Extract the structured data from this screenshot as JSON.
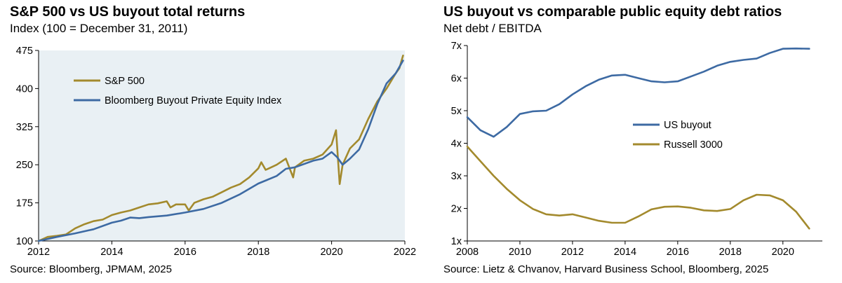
{
  "charts": [
    {
      "title": "S&P 500 vs US buyout total returns",
      "subtitle": "Index (100 = December 31, 2011)",
      "source": "Source: Bloomberg, JPMAM, 2025"
    },
    {
      "title": "US buyout vs comparable public equity debt ratios",
      "subtitle": "Net debt / EBITDA",
      "source": "Source: Lietz & Chvanov, Harvard Business School, Bloomberg, 2025"
    }
  ],
  "chart_data": [
    {
      "type": "line",
      "title": "S&P 500 vs US buyout total returns",
      "ylabel": "Index (100 = December 31, 2011)",
      "xlim": [
        2012,
        2022
      ],
      "ylim": [
        100,
        475
      ],
      "xticks": [
        2012,
        2014,
        2016,
        2018,
        2020,
        2022
      ],
      "yticks": [
        100,
        175,
        250,
        325,
        400,
        475
      ],
      "legend_position": "top-left",
      "background": "#e9f0f4",
      "series": [
        {
          "name": "S&P 500",
          "color": "#a38a2d",
          "x": [
            2012.0,
            2012.25,
            2012.5,
            2012.75,
            2013.0,
            2013.25,
            2013.5,
            2013.75,
            2014.0,
            2014.25,
            2014.5,
            2014.75,
            2015.0,
            2015.25,
            2015.5,
            2015.6,
            2015.75,
            2016.0,
            2016.1,
            2016.25,
            2016.5,
            2016.75,
            2017.0,
            2017.25,
            2017.5,
            2017.75,
            2018.0,
            2018.08,
            2018.2,
            2018.5,
            2018.75,
            2018.95,
            2019.0,
            2019.25,
            2019.5,
            2019.75,
            2020.0,
            2020.12,
            2020.22,
            2020.3,
            2020.5,
            2020.75,
            2021.0,
            2021.25,
            2021.5,
            2021.75,
            2021.85,
            2021.95
          ],
          "values": [
            100,
            108,
            110,
            113,
            125,
            133,
            139,
            142,
            151,
            156,
            160,
            166,
            172,
            174,
            178,
            166,
            172,
            172,
            160,
            175,
            182,
            187,
            196,
            205,
            212,
            225,
            243,
            255,
            240,
            250,
            262,
            225,
            245,
            258,
            262,
            270,
            290,
            318,
            212,
            250,
            282,
            300,
            340,
            375,
            400,
            430,
            440,
            465
          ]
        },
        {
          "name": "Bloomberg Buyout Private Equity Index",
          "color": "#3d6aa3",
          "x": [
            2012.0,
            2012.5,
            2013.0,
            2013.5,
            2014.0,
            2014.25,
            2014.5,
            2014.75,
            2015.0,
            2015.5,
            2016.0,
            2016.5,
            2017.0,
            2017.5,
            2018.0,
            2018.5,
            2018.75,
            2019.0,
            2019.5,
            2019.75,
            2020.0,
            2020.15,
            2020.3,
            2020.5,
            2020.75,
            2021.0,
            2021.25,
            2021.5,
            2021.75,
            2021.95
          ],
          "values": [
            100,
            108,
            115,
            123,
            136,
            140,
            146,
            145,
            147,
            150,
            156,
            163,
            175,
            192,
            213,
            228,
            242,
            245,
            258,
            262,
            275,
            265,
            250,
            262,
            280,
            320,
            370,
            410,
            430,
            455
          ]
        }
      ]
    },
    {
      "type": "line",
      "title": "US buyout vs comparable public equity debt ratios",
      "ylabel": "Net debt / EBITDA",
      "xlim": [
        2008,
        2021.5
      ],
      "ylim": [
        1,
        7
      ],
      "xticks": [
        2008,
        2010,
        2012,
        2014,
        2016,
        2018,
        2020
      ],
      "yticks": [
        1,
        2,
        3,
        4,
        5,
        6,
        7
      ],
      "ytick_suffix": "x",
      "legend_position": "center-right",
      "background": "#ffffff",
      "series": [
        {
          "name": "US buyout",
          "color": "#3d6aa3",
          "x": [
            2008,
            2008.5,
            2009,
            2009.5,
            2010,
            2010.5,
            2011,
            2011.5,
            2012,
            2012.5,
            2013,
            2013.5,
            2014,
            2014.5,
            2015,
            2015.5,
            2016,
            2016.5,
            2017,
            2017.5,
            2018,
            2018.5,
            2019,
            2019.5,
            2020,
            2020.5,
            2021
          ],
          "values": [
            4.8,
            4.4,
            4.2,
            4.5,
            4.9,
            4.98,
            5.0,
            5.2,
            5.5,
            5.75,
            5.95,
            6.08,
            6.1,
            6.0,
            5.9,
            5.87,
            5.9,
            6.05,
            6.2,
            6.38,
            6.5,
            6.56,
            6.6,
            6.77,
            6.9,
            6.91,
            6.9
          ]
        },
        {
          "name": "Russell 3000",
          "color": "#a38a2d",
          "x": [
            2008,
            2008.5,
            2009,
            2009.5,
            2010,
            2010.5,
            2011,
            2011.5,
            2012,
            2012.5,
            2013,
            2013.5,
            2014,
            2014.5,
            2015,
            2015.5,
            2016,
            2016.5,
            2017,
            2017.5,
            2018,
            2018.5,
            2019,
            2019.5,
            2020,
            2020.5,
            2021
          ],
          "values": [
            3.9,
            3.45,
            3.0,
            2.6,
            2.25,
            1.98,
            1.82,
            1.78,
            1.82,
            1.72,
            1.62,
            1.56,
            1.56,
            1.75,
            1.97,
            2.05,
            2.06,
            2.02,
            1.94,
            1.92,
            1.98,
            2.25,
            2.42,
            2.4,
            2.25,
            1.9,
            1.38
          ]
        }
      ]
    }
  ]
}
